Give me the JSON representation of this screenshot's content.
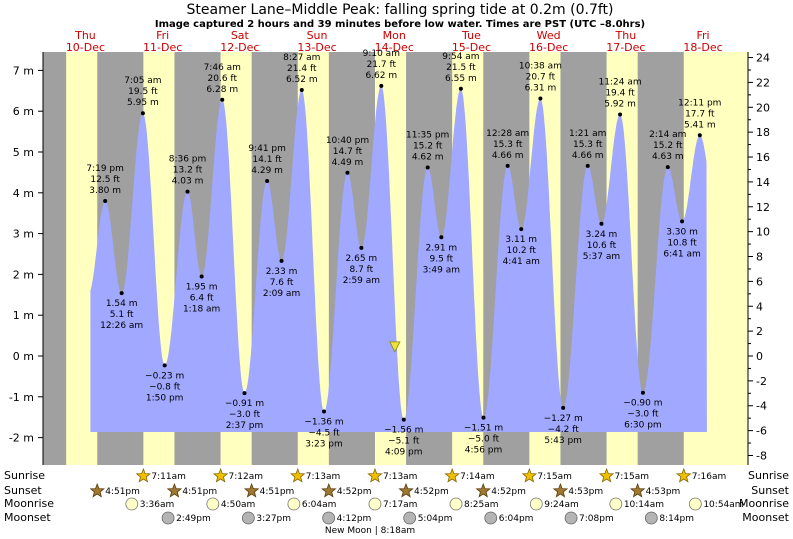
{
  "chart_data": {
    "type": "area",
    "title": "Steamer Lane–Middle Peak: falling  spring tide at 0.2m (0.7ft)",
    "subtitle": "Image captured 2 hours and 39 minutes before low water. Times are PST (UTC –8.0hrs)",
    "y_left": {
      "unit": "m",
      "ticks": [
        7,
        6,
        5,
        4,
        3,
        2,
        1,
        0,
        -1,
        -2
      ],
      "range": [
        -2.35,
        7.35
      ]
    },
    "y_right": {
      "unit": "ft",
      "ticks": [
        24,
        22,
        20,
        18,
        16,
        14,
        12,
        10,
        8,
        6,
        4,
        2,
        0,
        -2,
        -4,
        -6,
        -8
      ]
    },
    "days": [
      {
        "dow": "Thu",
        "date": "10-Dec"
      },
      {
        "dow": "Fri",
        "date": "11-Dec"
      },
      {
        "dow": "Sat",
        "date": "12-Dec"
      },
      {
        "dow": "Sun",
        "date": "13-Dec"
      },
      {
        "dow": "Mon",
        "date": "14-Dec"
      },
      {
        "dow": "Tue",
        "date": "15-Dec"
      },
      {
        "dow": "Wed",
        "date": "16-Dec"
      },
      {
        "dow": "Thu",
        "date": "17-Dec"
      },
      {
        "dow": "Fri",
        "date": "18-Dec"
      }
    ],
    "current_level_m": 0.2,
    "extremes": [
      {
        "d": 0.805,
        "m": 3.8,
        "time": "7:19 pm",
        "ft": "12.5 ft",
        "mt": "3.80 m",
        "pos": "above"
      },
      {
        "d": 1.019,
        "m": 1.54,
        "time": "12:26 am",
        "ft": "5.1 ft",
        "mt": "1.54 m",
        "pos": "below"
      },
      {
        "d": 1.294,
        "m": 5.95,
        "time": "7:05 am",
        "ft": "19.5 ft",
        "mt": "5.95 m",
        "pos": "above"
      },
      {
        "d": 1.576,
        "m": -0.23,
        "time": "1:50 pm",
        "ft": "−0.8 ft",
        "mt": "−0.23 m",
        "pos": "below"
      },
      {
        "d": 1.872,
        "m": 4.03,
        "time": "8:36 pm",
        "ft": "13.2 ft",
        "mt": "4.03 m",
        "pos": "above"
      },
      {
        "d": 2.055,
        "m": 1.95,
        "time": "1:18 am",
        "ft": "6.4 ft",
        "mt": "1.95 m",
        "pos": "below"
      },
      {
        "d": 2.322,
        "m": 6.28,
        "time": "7:46 am",
        "ft": "20.6 ft",
        "mt": "6.28 m",
        "pos": "above"
      },
      {
        "d": 2.61,
        "m": -0.91,
        "time": "2:37 pm",
        "ft": "−3.0 ft",
        "mt": "−0.91 m",
        "pos": "below"
      },
      {
        "d": 2.903,
        "m": 4.29,
        "time": "9:41 pm",
        "ft": "14.1 ft",
        "mt": "4.29 m",
        "pos": "above"
      },
      {
        "d": 3.09,
        "m": 2.33,
        "time": "2:09 am",
        "ft": "7.6 ft",
        "mt": "2.33 m",
        "pos": "below"
      },
      {
        "d": 3.352,
        "m": 6.52,
        "time": "8:27 am",
        "ft": "21.4 ft",
        "mt": "6.52 m",
        "pos": "above"
      },
      {
        "d": 3.64,
        "m": -1.36,
        "time": "3:23 pm",
        "ft": "−4.5 ft",
        "mt": "−1.36 m",
        "pos": "below"
      },
      {
        "d": 3.944,
        "m": 4.49,
        "time": "10:40 pm",
        "ft": "14.7 ft",
        "mt": "4.49 m",
        "pos": "above"
      },
      {
        "d": 4.124,
        "m": 2.65,
        "time": "2:59 am",
        "ft": "8.7 ft",
        "mt": "2.65 m",
        "pos": "below"
      },
      {
        "d": 4.382,
        "m": 6.62,
        "time": "9:10 am",
        "ft": "21.7 ft",
        "mt": "6.62 m",
        "pos": "above"
      },
      {
        "d": 4.673,
        "m": -1.56,
        "time": "4:09 pm",
        "ft": "−5.1 ft",
        "mt": "−1.56 m",
        "pos": "below"
      },
      {
        "d": 4.983,
        "m": 4.62,
        "time": "11:35 pm",
        "ft": "15.2 ft",
        "mt": "4.62 m",
        "pos": "above"
      },
      {
        "d": 5.16,
        "m": 2.91,
        "time": "3:49 am",
        "ft": "9.5 ft",
        "mt": "2.91 m",
        "pos": "below"
      },
      {
        "d": 5.413,
        "m": 6.55,
        "time": "9:54 am",
        "ft": "21.5 ft",
        "mt": "6.55 m",
        "pos": "above"
      },
      {
        "d": 5.706,
        "m": -1.51,
        "time": "4:56 pm",
        "ft": "−5.0 ft",
        "mt": "−1.51 m",
        "pos": "below"
      },
      {
        "d": 6.019,
        "m": 4.66,
        "time": "12:28 am",
        "ft": "15.3 ft",
        "mt": "4.66 m",
        "pos": "above"
      },
      {
        "d": 6.195,
        "m": 3.11,
        "time": "4:41 am",
        "ft": "10.2 ft",
        "mt": "3.11 m",
        "pos": "below"
      },
      {
        "d": 6.443,
        "m": 6.31,
        "time": "10:38 am",
        "ft": "20.7 ft",
        "mt": "6.31 m",
        "pos": "above"
      },
      {
        "d": 6.738,
        "m": -1.27,
        "time": "5:43 pm",
        "ft": "−4.2 ft",
        "mt": "−1.27 m",
        "pos": "below"
      },
      {
        "d": 7.056,
        "m": 4.66,
        "time": "1:21 am",
        "ft": "15.3 ft",
        "mt": "4.66 m",
        "pos": "above"
      },
      {
        "d": 7.234,
        "m": 3.24,
        "time": "5:37 am",
        "ft": "10.6 ft",
        "mt": "3.24 m",
        "pos": "below"
      },
      {
        "d": 7.475,
        "m": 5.92,
        "time": "11:24 am",
        "ft": "19.4 ft",
        "mt": "5.92 m",
        "pos": "above"
      },
      {
        "d": 7.771,
        "m": -0.9,
        "time": "6:30 pm",
        "ft": "−3.0 ft",
        "mt": "−0.90 m",
        "pos": "below"
      },
      {
        "d": 8.093,
        "m": 4.63,
        "time": "2:14 am",
        "ft": "15.2 ft",
        "mt": "4.63 m",
        "pos": "above"
      },
      {
        "d": 8.278,
        "m": 3.3,
        "time": "6:41 am",
        "ft": "10.8 ft",
        "mt": "3.30 m",
        "pos": "below"
      },
      {
        "d": 8.508,
        "m": 5.41,
        "time": "12:11 pm",
        "ft": "17.7 ft",
        "mt": "5.41 m",
        "pos": "above"
      }
    ],
    "sunrise": [
      "7:11am",
      "7:12am",
      "7:13am",
      "7:13am",
      "7:14am",
      "7:15am",
      "7:15am",
      "7:16am"
    ],
    "sunset": [
      "4:51pm",
      "4:51pm",
      "4:51pm",
      "4:52pm",
      "4:52pm",
      "4:52pm",
      "4:53pm",
      "4:53pm"
    ],
    "moonrise": [
      "3:36am",
      "4:50am",
      "6:04am",
      "7:17am",
      "8:25am",
      "9:24am",
      "10:14am",
      "10:54am"
    ],
    "moonset": [
      "2:49pm",
      "3:27pm",
      "4:12pm",
      "5:04pm",
      "6:04pm",
      "7:08pm",
      "8:14pm"
    ],
    "new_moon": "New Moon | 8:18am",
    "row_labels": {
      "sunrise": "Sunrise",
      "sunset": "Sunset",
      "moonrise": "Moonrise",
      "moonset": "Moonset"
    },
    "colors": {
      "tide": "#a0a8ff",
      "day": "#ffffc0",
      "night": "#a0a0a0",
      "label": "#cc0000",
      "sun": "#f0c000",
      "sunset": "#a07830",
      "moon": "#ffffc8",
      "moonset": "#b4b4b4"
    }
  }
}
